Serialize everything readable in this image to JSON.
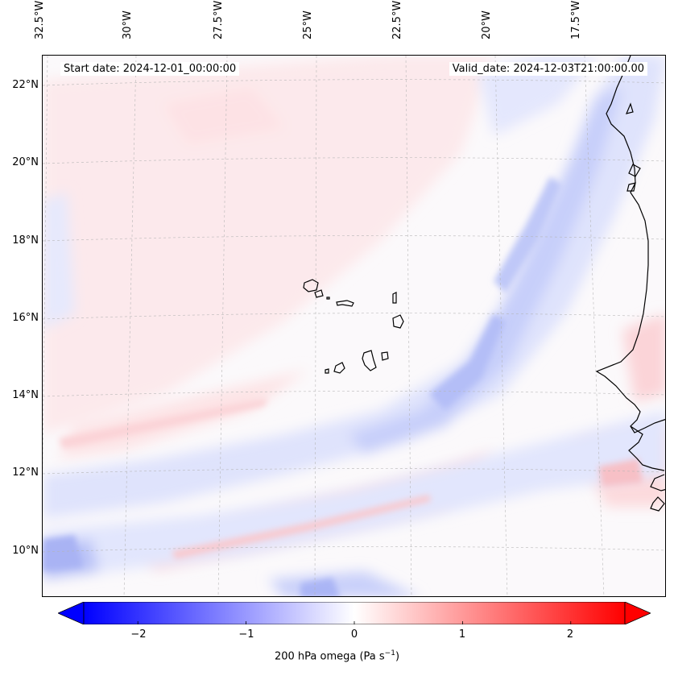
{
  "title_left": "Start date: 2024-12-01_00:00:00",
  "title_right": "Valid_date: 2024-12-03T21:00:00.00",
  "longitude_labels": [
    "32.5°W",
    "30°W",
    "27.5°W",
    "25°W",
    "22.5°W",
    "20°W",
    "17.5°W"
  ],
  "latitude_labels": [
    "22°N",
    "20°N",
    "18°N",
    "16°N",
    "14°N",
    "12°N",
    "10°N"
  ],
  "extent": {
    "lon_min": -32.6,
    "lon_max": -15.8,
    "lat_min": 8.9,
    "lat_max": 22.7
  },
  "colorbar": {
    "label_main": "200 hPa omega (Pa s",
    "label_sup": "−1",
    "label_end": ")",
    "ticks": [
      "−2",
      "−1",
      "0",
      "1",
      "2"
    ],
    "tick_values": [
      -2,
      -1,
      0,
      1,
      2
    ],
    "range": [
      -2.5,
      2.5
    ],
    "extend": "both",
    "colormap": "bwr",
    "negative_color": "#0000ff",
    "zero_color": "#ffffff",
    "positive_color": "#ff0000"
  },
  "map": {
    "field": "200 hPa omega",
    "coastline_color": "#000000",
    "gridline_style": "dashed-gray",
    "features": [
      "Cape Verde islands",
      "West African coastline"
    ]
  }
}
